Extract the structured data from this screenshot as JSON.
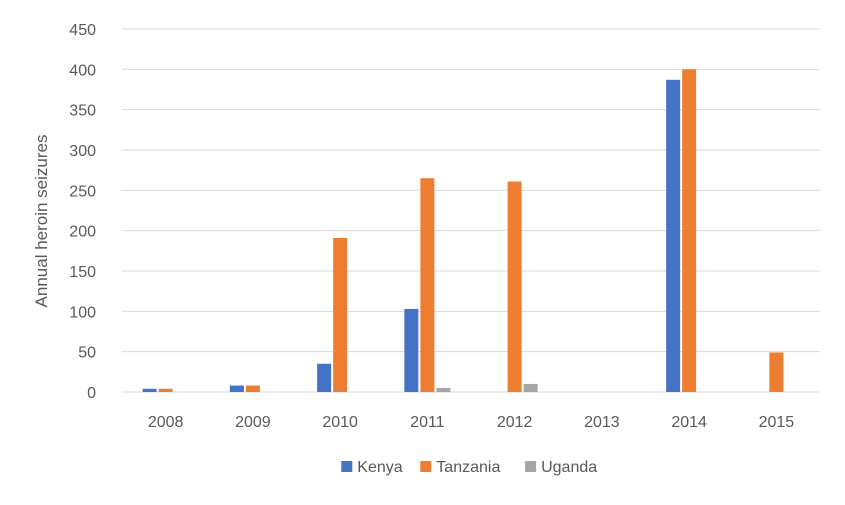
{
  "chart_data": {
    "type": "bar",
    "title": "",
    "xlabel": "",
    "ylabel": "Annual heroin seizures",
    "categories": [
      "2008",
      "2009",
      "2010",
      "2011",
      "2012",
      "2013",
      "2014",
      "2015"
    ],
    "ylim": [
      0,
      450
    ],
    "yticks": [
      0,
      50,
      100,
      150,
      200,
      250,
      300,
      350,
      400,
      450
    ],
    "grid": true,
    "legend_position": "bottom",
    "series": [
      {
        "name": "Kenya",
        "color": "#4472C4",
        "values": [
          4,
          8,
          35,
          103,
          0,
          0,
          387,
          0
        ]
      },
      {
        "name": "Tanzania",
        "color": "#ED7D31",
        "values": [
          4,
          8,
          191,
          265,
          261,
          0,
          400,
          49
        ]
      },
      {
        "name": "Uganda",
        "color": "#A5A5A5",
        "values": [
          0,
          0,
          0,
          5,
          10,
          0,
          0,
          0
        ]
      }
    ]
  }
}
